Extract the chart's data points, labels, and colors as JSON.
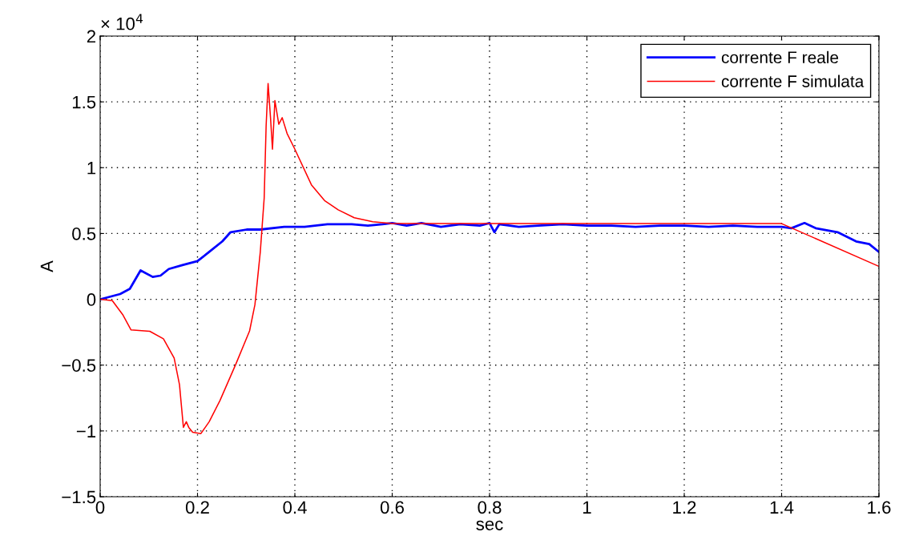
{
  "chart_data": {
    "type": "line",
    "xlabel": "sec",
    "ylabel": "A",
    "annotations": [
      "× 10$^{4}$"
    ],
    "xlim": [
      0,
      1.6
    ],
    "xticks": [
      0,
      0.2,
      0.4,
      0.6,
      0.8,
      1,
      1.2,
      1.4,
      1.6
    ],
    "ylim": [
      -1.5,
      2
    ],
    "yticks": [
      {
        "value": -1.5,
        "label": "−1.5"
      },
      {
        "value": -1,
        "label": "−1"
      },
      {
        "value": -0.5,
        "label": "−0.5"
      },
      0,
      0.5,
      1,
      1.5,
      2
    ],
    "grid": true,
    "legend": "top right",
    "line_style": "solid",
    "series": [
      {
        "name": "corrente F reale",
        "color": "#0000ff",
        "x": [
          0,
          0.041,
          0.061,
          0.083,
          0.108,
          0.124,
          0.141,
          0.169,
          0.2,
          0.224,
          0.251,
          0.268,
          0.301,
          0.329,
          0.378,
          0.42,
          0.467,
          0.517,
          0.55,
          0.58,
          0.6,
          0.63,
          0.66,
          0.7,
          0.74,
          0.78,
          0.8,
          0.81,
          0.82,
          0.86,
          0.9,
          0.95,
          1.0,
          1.05,
          1.1,
          1.15,
          1.2,
          1.25,
          1.3,
          1.35,
          1.4,
          1.42,
          1.447,
          1.47,
          1.515,
          1.553,
          1.58,
          1.6
        ],
        "values": [
          0,
          0.04,
          0.08,
          0.22,
          0.17,
          0.18,
          0.23,
          0.26,
          0.29,
          0.36,
          0.44,
          0.51,
          0.53,
          0.53,
          0.55,
          0.55,
          0.57,
          0.57,
          0.56,
          0.57,
          0.58,
          0.56,
          0.58,
          0.55,
          0.57,
          0.56,
          0.58,
          0.51,
          0.57,
          0.55,
          0.56,
          0.57,
          0.56,
          0.56,
          0.55,
          0.56,
          0.56,
          0.55,
          0.56,
          0.55,
          0.55,
          0.54,
          0.58,
          0.54,
          0.51,
          0.44,
          0.42,
          0.36
        ]
      },
      {
        "name": "corrente F simulata",
        "color": "#ff0000",
        "x": [
          0,
          0.025,
          0.047,
          0.0635,
          0.102,
          0.13,
          0.152,
          0.163,
          0.171,
          0.177,
          0.182,
          0.19,
          0.207,
          0.224,
          0.246,
          0.279,
          0.307,
          0.318,
          0.329,
          0.337,
          0.341,
          0.345,
          0.35,
          0.354,
          0.359,
          0.367,
          0.374,
          0.384,
          0.4,
          0.434,
          0.461,
          0.489,
          0.522,
          0.56,
          0.6,
          0.8,
          1.0,
          1.2,
          1.4,
          1.6
        ],
        "values": [
          0,
          -0.01,
          -0.12,
          -0.233,
          -0.243,
          -0.3,
          -0.446,
          -0.649,
          -0.973,
          -0.93,
          -0.973,
          -1.01,
          -1.02,
          -0.93,
          -0.77,
          -0.49,
          -0.24,
          -0.04,
          0.36,
          0.77,
          1.32,
          1.64,
          1.38,
          1.14,
          1.51,
          1.33,
          1.38,
          1.26,
          1.14,
          0.87,
          0.75,
          0.68,
          0.62,
          0.59,
          0.575,
          0.575,
          0.575,
          0.575,
          0.575,
          0.25
        ]
      }
    ]
  }
}
